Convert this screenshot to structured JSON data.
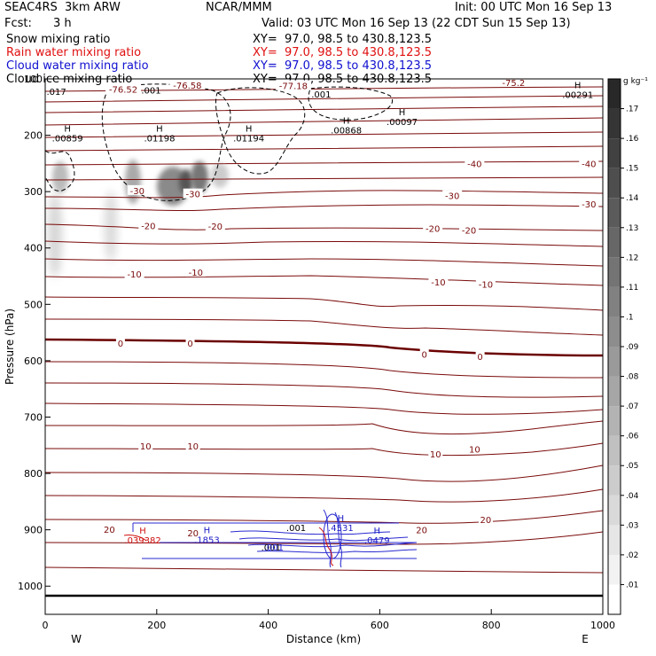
{
  "header": {
    "model": "SEAC4RS  3km ARW",
    "org": "NCAR/MMM",
    "init": "Init: 00 UTC Mon 16 Sep 13",
    "fcst_label": "Fcst:",
    "fcst_value": "3 h",
    "valid": "Valid: 03 UTC Mon 16 Sep 13 (22 CDT Sun 15 Sep 13)",
    "fields": [
      {
        "name": "Snow mixing ratio",
        "xy": "XY=  97.0, 98.5 to 430.8,123.5",
        "color": "#000000"
      },
      {
        "name": "Rain water mixing ratio",
        "xy": "XY=  97.0, 98.5 to 430.8,123.5",
        "color": "#e01010"
      },
      {
        "name": "Cloud water mixing ratio",
        "xy": "XY=  97.0, 98.5 to 430.8,123.5",
        "color": "#1010d0"
      },
      {
        "name": "Cloud ice mixing ratio",
        "xy": "XY=  97.0, 98.5 to 430.8,123.5",
        "color": "#000000"
      }
    ]
  },
  "chart_data": {
    "type": "cross-section contour",
    "xlabel": "Distance (km)",
    "ylabel": "Pressure (hPa)",
    "x_ticks": [
      0,
      200,
      400,
      600,
      800,
      1000
    ],
    "y_ticks": [
      100,
      200,
      300,
      400,
      500,
      600,
      700,
      800,
      900,
      1000
    ],
    "xlim": [
      0,
      1000
    ],
    "ylim": [
      1050,
      100
    ],
    "x_end_labels": {
      "left": "W",
      "right": "E"
    },
    "colorbar": {
      "unit": "g kg⁻¹",
      "levels": [
        ".01",
        ".02",
        ".03",
        ".04",
        ".05",
        ".06",
        ".07",
        ".08",
        ".09",
        ".1",
        ".11",
        ".12",
        ".13",
        ".14",
        ".15",
        ".16",
        ".17"
      ]
    },
    "temperature_contours": [
      {
        "label": "-75.2",
        "x": 840,
        "p": 106
      },
      {
        "label": "-76.52",
        "x": 140,
        "p": 118
      },
      {
        "label": "-76.58",
        "x": 255,
        "p": 111
      },
      {
        "label": "-77.18",
        "x": 445,
        "p": 112
      },
      {
        "label": "-40",
        "x": 770,
        "p": 250
      },
      {
        "label": "-40",
        "x": 975,
        "p": 250
      },
      {
        "label": "-30",
        "x": 165,
        "p": 298
      },
      {
        "label": "-30",
        "x": 265,
        "p": 304
      },
      {
        "label": "-30",
        "x": 730,
        "p": 307
      },
      {
        "label": "-30",
        "x": 975,
        "p": 322
      },
      {
        "label": "-20",
        "x": 185,
        "p": 360
      },
      {
        "label": "-20",
        "x": 305,
        "p": 361
      },
      {
        "label": "-20",
        "x": 695,
        "p": 365
      },
      {
        "label": "-20",
        "x": 760,
        "p": 368
      },
      {
        "label": "-10",
        "x": 160,
        "p": 446
      },
      {
        "label": "-10",
        "x": 270,
        "p": 443
      },
      {
        "label": "-10",
        "x": 705,
        "p": 460
      },
      {
        "label": "-10",
        "x": 790,
        "p": 464
      },
      {
        "label": "0",
        "x": 135,
        "p": 569
      },
      {
        "label": "0",
        "x": 260,
        "p": 569
      },
      {
        "label": "0",
        "x": 680,
        "p": 588
      },
      {
        "label": "0",
        "x": 780,
        "p": 592
      },
      {
        "label": "10",
        "x": 180,
        "p": 751
      },
      {
        "label": "10",
        "x": 265,
        "p": 751
      },
      {
        "label": "10",
        "x": 700,
        "p": 765
      },
      {
        "label": "10",
        "x": 770,
        "p": 757
      },
      {
        "label": "20",
        "x": 115,
        "p": 899
      },
      {
        "label": "20",
        "x": 265,
        "p": 905
      },
      {
        "label": "20",
        "x": 675,
        "p": 900
      },
      {
        "label": "20",
        "x": 790,
        "p": 882
      }
    ],
    "snow_maxima": [
      {
        "value": ".00859",
        "x": 40,
        "p": 211
      },
      {
        "value": ".01198",
        "x": 205,
        "p": 211
      },
      {
        "value": ".01194",
        "x": 365,
        "p": 211
      },
      {
        "value": ".00868",
        "x": 540,
        "p": 197
      },
      {
        "value": ".00097",
        "x": 640,
        "p": 182
      },
      {
        "value": ".00291",
        "x": 955,
        "p": 134
      }
    ],
    "cloud_ice_labels": [
      {
        "value": ".017",
        "x": 20,
        "p": 128
      },
      {
        "value": ".001",
        "x": 190,
        "p": 126
      },
      {
        "value": ".001",
        "x": 495,
        "p": 133
      },
      {
        "value": ".001",
        "x": 450,
        "p": 902
      },
      {
        "value": ".001",
        "x": 405,
        "p": 937
      }
    ],
    "rain_maxima": [
      {
        "value": ".039382",
        "x": 175,
        "p": 924
      }
    ],
    "cloud_water_maxima": [
      {
        "value": ".1853",
        "x": 290,
        "p": 923
      },
      {
        "value": ".4531",
        "x": 530,
        "p": 902
      },
      {
        "value": ".0479",
        "x": 595,
        "p": 924
      }
    ],
    "cloud_water_labels": [
      {
        "value": ".001",
        "x": 410,
        "p": 937
      }
    ]
  }
}
